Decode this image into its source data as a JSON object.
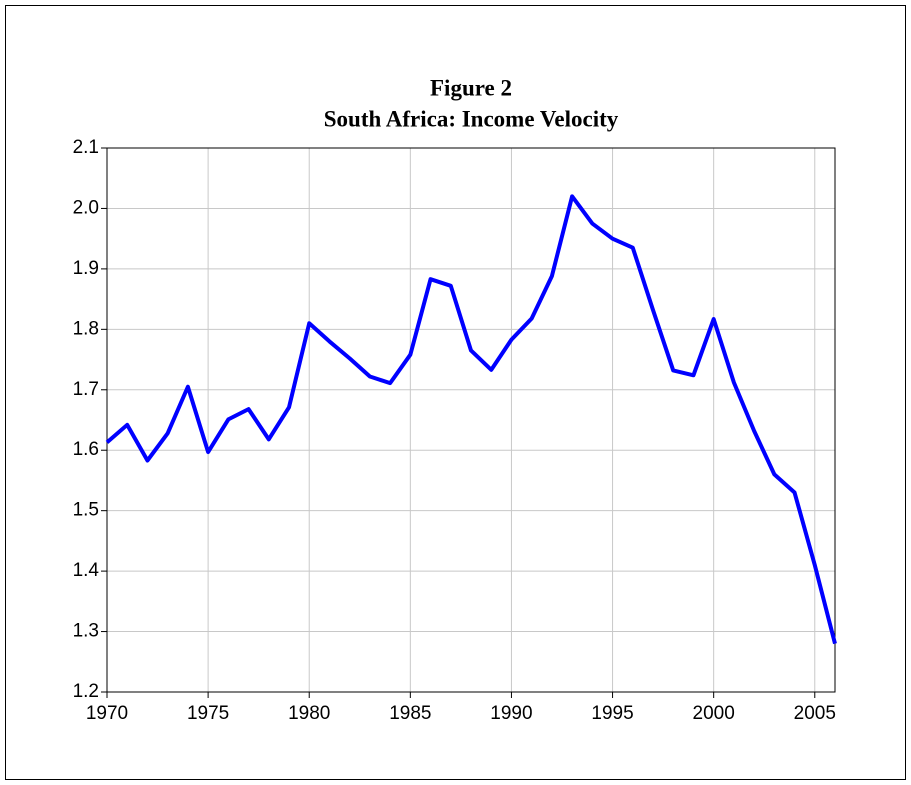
{
  "chart_data": {
    "type": "line",
    "title": "Figure 2",
    "subtitle": "South Africa: Income Velocity",
    "x": [
      1970,
      1971,
      1972,
      1973,
      1974,
      1975,
      1976,
      1977,
      1978,
      1979,
      1980,
      1981,
      1982,
      1983,
      1984,
      1985,
      1986,
      1987,
      1988,
      1989,
      1990,
      1991,
      1992,
      1993,
      1994,
      1995,
      1996,
      1997,
      1998,
      1999,
      2000,
      2001,
      2002,
      2003,
      2004,
      2005,
      2006
    ],
    "series": [
      {
        "name": "Income Velocity",
        "color": "#0000ff",
        "values": [
          1.613,
          1.642,
          1.583,
          1.628,
          1.705,
          1.597,
          1.651,
          1.668,
          1.618,
          1.671,
          1.81,
          1.78,
          1.752,
          1.722,
          1.711,
          1.758,
          1.883,
          1.872,
          1.765,
          1.733,
          1.783,
          1.818,
          1.888,
          2.02,
          1.975,
          1.95,
          1.935,
          1.832,
          1.732,
          1.724,
          1.817,
          1.712,
          1.632,
          1.56,
          1.53,
          1.41,
          1.28
        ]
      }
    ],
    "xlim": [
      1970,
      2006
    ],
    "xticks": [
      1970,
      1975,
      1980,
      1985,
      1990,
      1995,
      2000,
      2005
    ],
    "ylim": [
      1.2,
      2.1
    ],
    "yticks": [
      1.2,
      1.3,
      1.4,
      1.5,
      1.6,
      1.7,
      1.8,
      1.9,
      {
        "value": 2,
        "label": "2.0"
      },
      2.1
    ],
    "grid": true
  }
}
